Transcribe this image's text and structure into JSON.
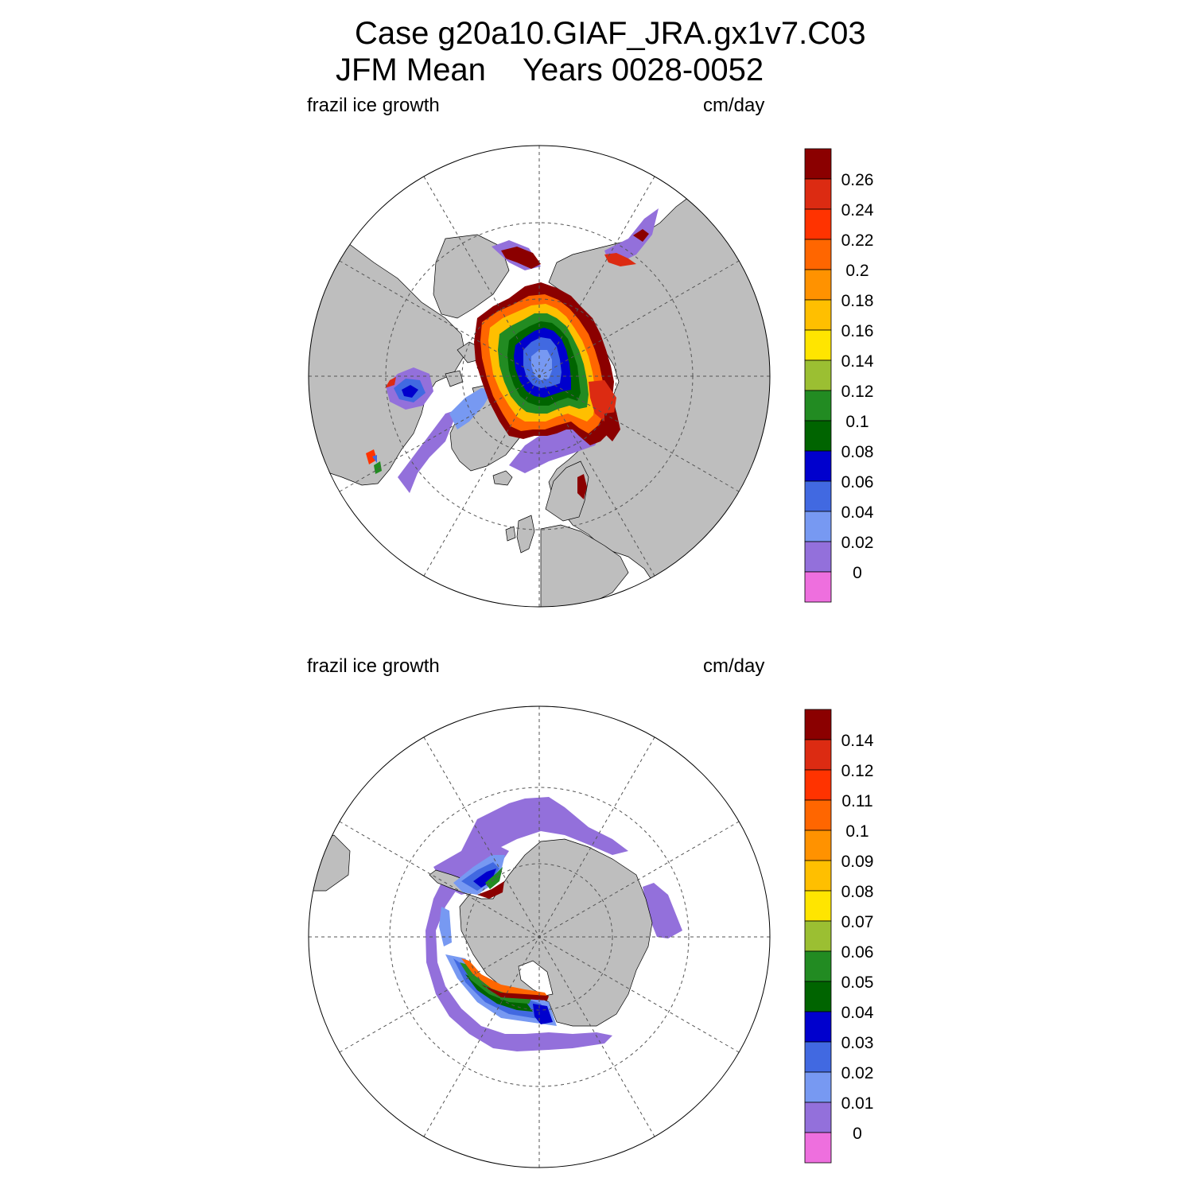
{
  "header": {
    "case_line": "Case g20a10.GIAF_JRA.gx1v7.C03",
    "season": "JFM Mean",
    "years": "Years 0028-0052"
  },
  "panels": [
    {
      "hemisphere": "north",
      "variable_label": "frazil ice growth",
      "units_label": "cm/day",
      "colorbar_labels": [
        "0.26",
        "0.24",
        "0.22",
        "0.2",
        "0.18",
        "0.16",
        "0.14",
        "0.12",
        "0.1",
        "0.08",
        "0.06",
        "0.04",
        "0.02",
        "0"
      ]
    },
    {
      "hemisphere": "south",
      "variable_label": "frazil ice growth",
      "units_label": "cm/day",
      "colorbar_labels": [
        "0.14",
        "0.12",
        "0.11",
        "0.1",
        "0.09",
        "0.08",
        "0.07",
        "0.06",
        "0.05",
        "0.04",
        "0.03",
        "0.02",
        "0.01",
        "0"
      ]
    }
  ],
  "colors": {
    "colorbar_top_to_bottom": [
      "#8b0000",
      "#dc2b12",
      "#ff3300",
      "#ff6600",
      "#ff9200",
      "#ffbf00",
      "#ffe500",
      "#9bbf32",
      "#228b22",
      "#006400",
      "#0000cd",
      "#4169e1",
      "#7799f2",
      "#9370db",
      "#ee6fde"
    ],
    "land": "#bebebe",
    "ocean": "#ffffff",
    "grid": "#555555"
  }
}
